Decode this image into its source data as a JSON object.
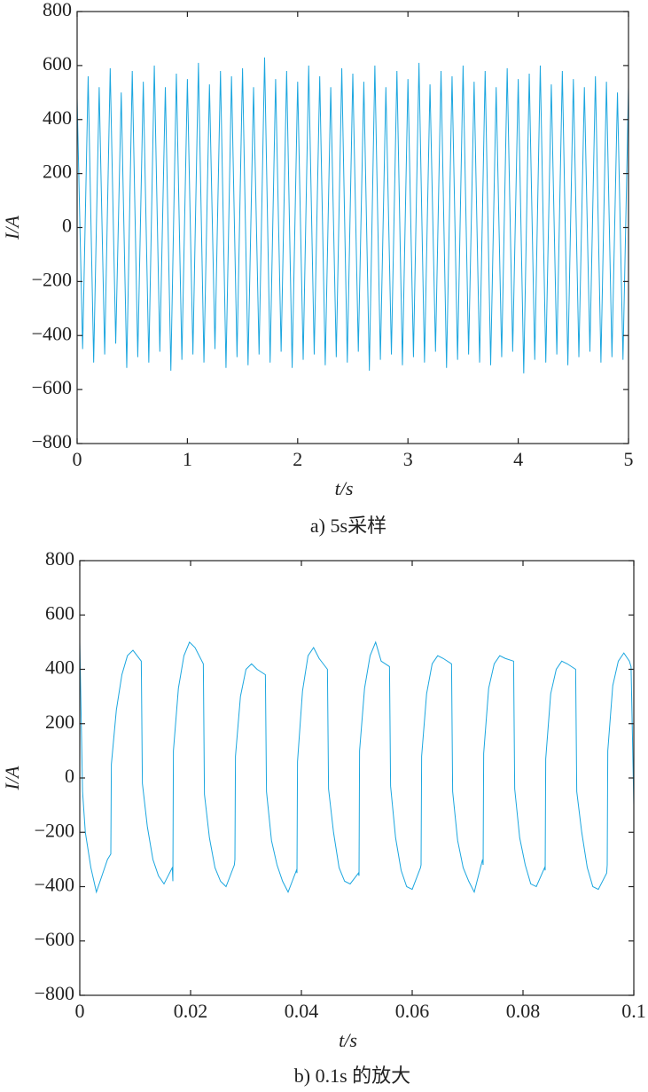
{
  "chart_data": [
    {
      "type": "line",
      "xlabel": "t/s",
      "ylabel": "I/A",
      "caption": "a) 5s采样",
      "color": "#1ba6df",
      "xlim": [
        0,
        5
      ],
      "xticks": [
        0,
        1,
        2,
        3,
        4,
        5
      ],
      "ylim": [
        -800,
        800
      ],
      "yticks": [
        {
          "value": -800,
          "label": "−800"
        },
        {
          "value": -600,
          "label": "−600"
        },
        {
          "value": -400,
          "label": "−400"
        },
        {
          "value": -200,
          "label": "−200"
        },
        0,
        200,
        400,
        600,
        800
      ],
      "x": [
        0,
        0.05,
        0.1,
        0.15,
        0.2,
        0.25,
        0.3,
        0.35,
        0.4,
        0.45,
        0.5,
        0.55,
        0.6,
        0.65,
        0.7,
        0.75,
        0.8,
        0.85,
        0.9,
        0.95,
        1,
        1.05,
        1.1,
        1.15,
        1.2,
        1.25,
        1.3,
        1.35,
        1.4,
        1.45,
        1.5,
        1.55,
        1.6,
        1.65,
        1.7,
        1.75,
        1.8,
        1.85,
        1.9,
        1.95,
        2,
        2.05,
        2.1,
        2.15,
        2.2,
        2.25,
        2.3,
        2.35,
        2.4,
        2.45,
        2.5,
        2.55,
        2.6,
        2.65,
        2.7,
        2.75,
        2.8,
        2.85,
        2.9,
        2.95,
        3,
        3.05,
        3.1,
        3.15,
        3.2,
        3.25,
        3.3,
        3.35,
        3.4,
        3.45,
        3.5,
        3.55,
        3.6,
        3.65,
        3.7,
        3.75,
        3.8,
        3.85,
        3.9,
        3.95,
        4,
        4.05,
        4.1,
        4.15,
        4.2,
        4.25,
        4.3,
        4.35,
        4.4,
        4.45,
        4.5,
        4.55,
        4.6,
        4.65,
        4.7,
        4.75,
        4.8,
        4.85,
        4.9,
        4.95,
        5
      ],
      "values": [
        480,
        -450,
        560,
        -500,
        520,
        -470,
        590,
        -430,
        500,
        -520,
        580,
        -480,
        540,
        -500,
        600,
        -460,
        520,
        -530,
        570,
        -490,
        550,
        -470,
        610,
        -500,
        530,
        -450,
        580,
        -520,
        560,
        -480,
        590,
        -510,
        520,
        -470,
        630,
        -500,
        550,
        -460,
        580,
        -520,
        540,
        -490,
        600,
        -470,
        560,
        -510,
        520,
        -480,
        590,
        -500,
        570,
        -460,
        540,
        -530,
        600,
        -490,
        520,
        -470,
        580,
        -510,
        550,
        -480,
        610,
        -500,
        530,
        -460,
        580,
        -520,
        560,
        -490,
        600,
        -470,
        540,
        -500,
        580,
        -510,
        520,
        -480,
        590,
        -460,
        550,
        -540,
        570,
        -490,
        600,
        -500,
        530,
        -470,
        580,
        -510,
        550,
        -480,
        520,
        -460,
        560,
        -500,
        540,
        -480,
        500,
        -490,
        520
      ]
    },
    {
      "type": "line",
      "xlabel": "t/s",
      "ylabel": "I/A",
      "caption": "b) 0.1s 的放大",
      "color": "#1ba6df",
      "xlim": [
        0,
        0.1
      ],
      "xticks": [
        0,
        0.02,
        0.04,
        0.06,
        0.08,
        0.1
      ],
      "ylim": [
        -800,
        800
      ],
      "yticks": [
        {
          "value": -800,
          "label": "−800"
        },
        {
          "value": -600,
          "label": "−600"
        },
        {
          "value": -400,
          "label": "−400"
        },
        {
          "value": -200,
          "label": "−200"
        },
        0,
        200,
        400,
        600,
        800
      ],
      "x": [
        0,
        0.0005,
        0.001,
        0.002,
        0.003,
        0.004,
        0.005,
        0.0056,
        0.0057,
        0.0066,
        0.0076,
        0.0086,
        0.0096,
        0.0111,
        0.0113,
        0.0122,
        0.0132,
        0.0142,
        0.0152,
        0.0167,
        0.0168,
        0.0169,
        0.0178,
        0.0188,
        0.0198,
        0.0208,
        0.0223,
        0.0225,
        0.0234,
        0.0244,
        0.0254,
        0.0264,
        0.0279,
        0.028,
        0.0281,
        0.029,
        0.03,
        0.031,
        0.032,
        0.0335,
        0.0337,
        0.0346,
        0.0356,
        0.0366,
        0.0376,
        0.0391,
        0.0392,
        0.0393,
        0.0402,
        0.0412,
        0.0422,
        0.0432,
        0.0447,
        0.0449,
        0.0458,
        0.0468,
        0.0478,
        0.0488,
        0.0503,
        0.0504,
        0.0505,
        0.0514,
        0.0524,
        0.0534,
        0.0544,
        0.0559,
        0.0561,
        0.057,
        0.058,
        0.059,
        0.06,
        0.0615,
        0.0616,
        0.0617,
        0.0626,
        0.0636,
        0.0646,
        0.0656,
        0.0671,
        0.0673,
        0.0682,
        0.0692,
        0.0702,
        0.0712,
        0.0727,
        0.0728,
        0.0729,
        0.0738,
        0.0748,
        0.0758,
        0.0768,
        0.0783,
        0.0785,
        0.0794,
        0.0804,
        0.0814,
        0.0824,
        0.0839,
        0.084,
        0.0841,
        0.085,
        0.086,
        0.087,
        0.088,
        0.0895,
        0.0897,
        0.0906,
        0.0916,
        0.0926,
        0.0936,
        0.0951,
        0.0952,
        0.0953,
        0.0962,
        0.0972,
        0.0982,
        0.0992,
        0.0995,
        0.1
      ],
      "values": [
        500,
        -50,
        -200,
        -330,
        -420,
        -360,
        -300,
        -280,
        50,
        250,
        380,
        450,
        470,
        430,
        -20,
        -180,
        -300,
        -360,
        -390,
        -330,
        -380,
        100,
        330,
        450,
        500,
        480,
        420,
        -60,
        -220,
        -330,
        -380,
        -400,
        -320,
        -300,
        80,
        300,
        400,
        420,
        400,
        380,
        -50,
        -230,
        -320,
        -380,
        -420,
        -340,
        -350,
        60,
        320,
        450,
        480,
        440,
        400,
        -40,
        -200,
        -330,
        -380,
        -390,
        -350,
        -360,
        100,
        330,
        450,
        500,
        430,
        410,
        -30,
        -220,
        -340,
        -400,
        -410,
        -330,
        -320,
        80,
        310,
        420,
        450,
        440,
        420,
        -50,
        -230,
        -330,
        -380,
        -420,
        -300,
        -320,
        90,
        330,
        420,
        450,
        440,
        430,
        -40,
        -220,
        -320,
        -390,
        -400,
        -330,
        -340,
        70,
        310,
        400,
        430,
        420,
        400,
        -50,
        -200,
        -330,
        -400,
        -410,
        -350,
        -320,
        100,
        340,
        430,
        460,
        430,
        410,
        -100
      ]
    }
  ]
}
